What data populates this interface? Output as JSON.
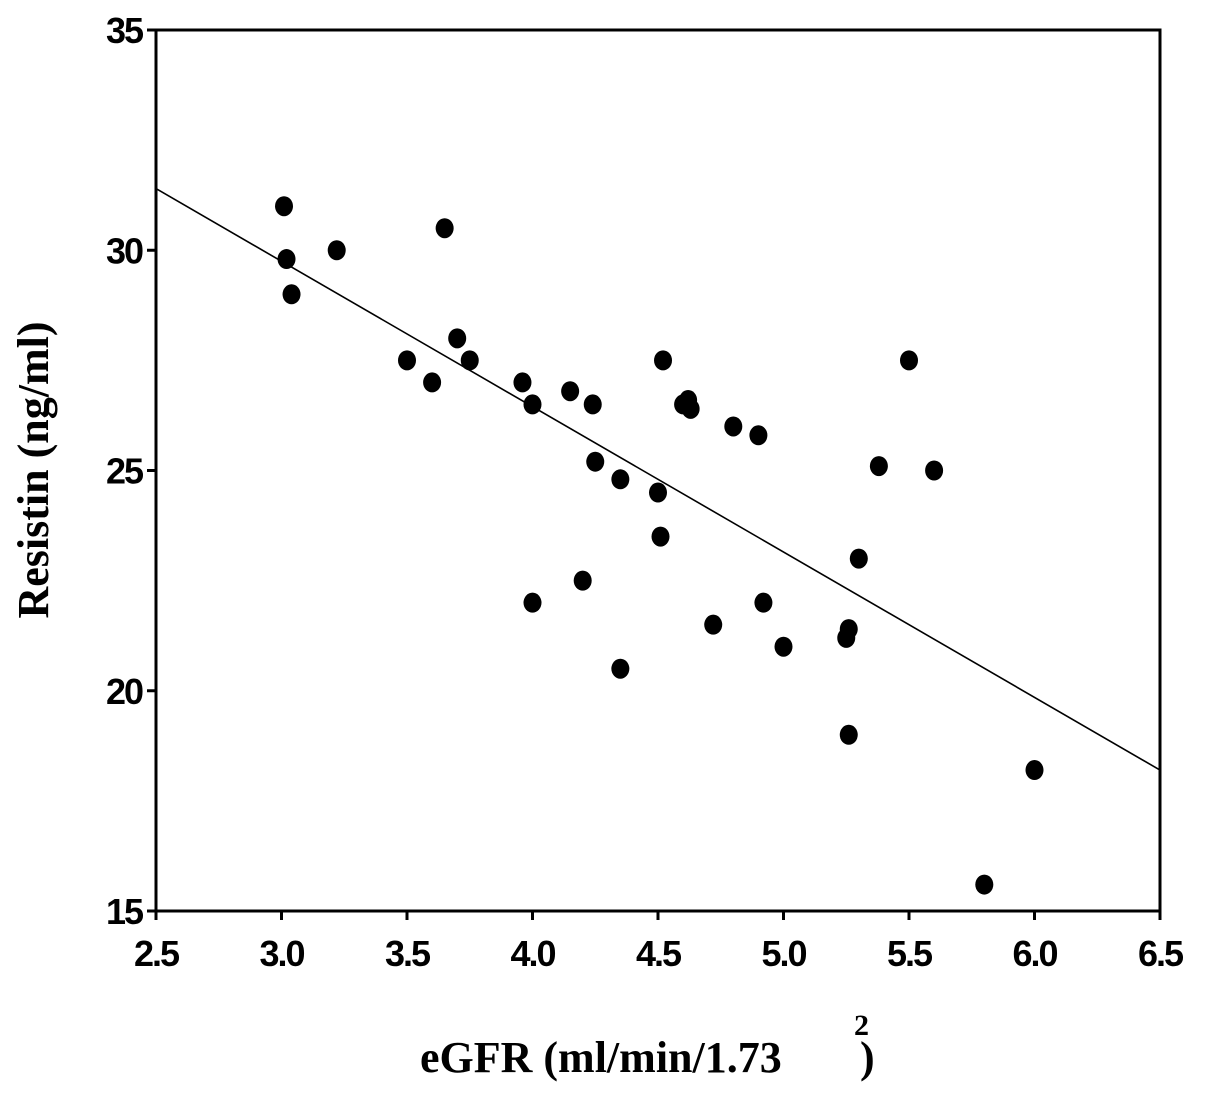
{
  "chart_data": {
    "type": "scatter",
    "xlabel": "eGFR (ml/min/1.73",
    "xlabel_superscript": "2",
    "xlabel_close": " )",
    "ylabel": "Resistin (ng/ml)",
    "xlim": [
      2.5,
      6.5
    ],
    "ylim": [
      15,
      35
    ],
    "xticks": [
      2.5,
      3.0,
      3.5,
      4.0,
      4.5,
      5.0,
      5.5,
      6.0,
      6.5
    ],
    "xtick_labels": [
      "2.5",
      "3.0",
      "3.5",
      "4.0",
      "4.5",
      "5.0",
      "5.5",
      "6.0",
      "6.5"
    ],
    "yticks": [
      15,
      20,
      25,
      30,
      35
    ],
    "ytick_labels": [
      "15",
      "20",
      "25",
      "30",
      "35"
    ],
    "grid": false,
    "point_color": "#000000",
    "points": [
      {
        "x": 3.01,
        "y": 31.0
      },
      {
        "x": 3.02,
        "y": 29.8
      },
      {
        "x": 3.04,
        "y": 29.0
      },
      {
        "x": 3.22,
        "y": 30.0
      },
      {
        "x": 3.5,
        "y": 27.5
      },
      {
        "x": 3.6,
        "y": 27.0
      },
      {
        "x": 3.65,
        "y": 30.5
      },
      {
        "x": 3.7,
        "y": 28.0
      },
      {
        "x": 3.75,
        "y": 27.5
      },
      {
        "x": 3.96,
        "y": 27.0
      },
      {
        "x": 4.0,
        "y": 26.5
      },
      {
        "x": 4.0,
        "y": 22.0
      },
      {
        "x": 4.15,
        "y": 26.8
      },
      {
        "x": 4.2,
        "y": 22.5
      },
      {
        "x": 4.24,
        "y": 26.5
      },
      {
        "x": 4.25,
        "y": 25.2
      },
      {
        "x": 4.35,
        "y": 24.8
      },
      {
        "x": 4.35,
        "y": 20.5
      },
      {
        "x": 4.5,
        "y": 24.5
      },
      {
        "x": 4.51,
        "y": 23.5
      },
      {
        "x": 4.52,
        "y": 27.5
      },
      {
        "x": 4.6,
        "y": 26.5
      },
      {
        "x": 4.62,
        "y": 26.6
      },
      {
        "x": 4.63,
        "y": 26.4
      },
      {
        "x": 4.72,
        "y": 21.5
      },
      {
        "x": 4.8,
        "y": 26.0
      },
      {
        "x": 4.9,
        "y": 25.8
      },
      {
        "x": 4.92,
        "y": 22.0
      },
      {
        "x": 5.0,
        "y": 21.0
      },
      {
        "x": 5.25,
        "y": 21.2
      },
      {
        "x": 5.26,
        "y": 21.4
      },
      {
        "x": 5.26,
        "y": 19.0
      },
      {
        "x": 5.3,
        "y": 23.0
      },
      {
        "x": 5.38,
        "y": 25.1
      },
      {
        "x": 5.5,
        "y": 27.5
      },
      {
        "x": 5.6,
        "y": 25.0
      },
      {
        "x": 5.8,
        "y": 15.6
      },
      {
        "x": 6.0,
        "y": 18.2
      }
    ],
    "regression_line": {
      "x": [
        2.5,
        6.5
      ],
      "y": [
        31.4,
        18.2
      ],
      "color": "#000000"
    }
  }
}
